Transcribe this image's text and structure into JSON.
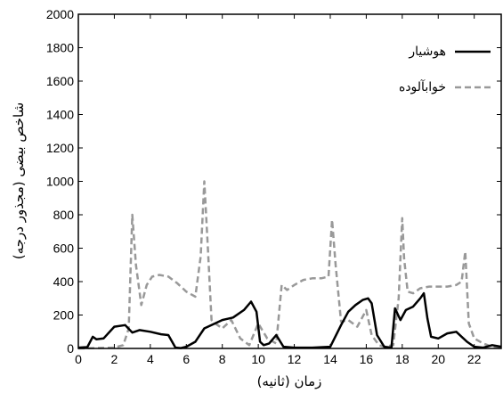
{
  "chart_data": {
    "type": "line",
    "xlabel": "زمان (ثانیه)",
    "ylabel": "شاخص بیضی (مجذور درجه)",
    "xlim": [
      0,
      23.5
    ],
    "ylim": [
      0,
      2000
    ],
    "xticks": [
      0,
      2,
      4,
      6,
      8,
      10,
      12,
      14,
      16,
      18,
      20,
      22
    ],
    "yticks": [
      0,
      200,
      400,
      600,
      800,
      1000,
      1200,
      1400,
      1600,
      1800,
      2000
    ],
    "grid": false,
    "legend_position": "top-right",
    "series": [
      {
        "name": "هوشیار",
        "color": "#000000",
        "style": "solid",
        "x": [
          0,
          0.5,
          0.8,
          1.0,
          1.4,
          2.0,
          2.6,
          3.0,
          3.4,
          4.0,
          4.6,
          5.0,
          5.4,
          5.7,
          6.0,
          6.5,
          7.0,
          7.4,
          8.0,
          8.6,
          9.2,
          9.6,
          9.9,
          10.1,
          10.3,
          10.6,
          11.0,
          11.4,
          12.0,
          13.0,
          14.0,
          14.6,
          15.0,
          15.4,
          15.8,
          16.1,
          16.3,
          16.6,
          17.0,
          17.4,
          17.6,
          17.9,
          18.2,
          18.6,
          19.0,
          19.2,
          19.4,
          19.6,
          20.0,
          20.5,
          21.0,
          21.6,
          22.0,
          22.5,
          23.0,
          23.5
        ],
        "y": [
          5,
          8,
          70,
          55,
          60,
          130,
          140,
          95,
          110,
          100,
          85,
          80,
          5,
          2,
          10,
          40,
          120,
          140,
          170,
          185,
          230,
          280,
          220,
          40,
          20,
          30,
          80,
          10,
          5,
          5,
          10,
          140,
          220,
          260,
          290,
          300,
          270,
          80,
          10,
          5,
          240,
          170,
          230,
          250,
          300,
          330,
          180,
          70,
          60,
          90,
          100,
          40,
          10,
          5,
          20,
          10
        ]
      },
      {
        "name": "خوابآلوده",
        "color": "#999999",
        "style": "dashed",
        "x": [
          0,
          2.0,
          2.5,
          2.8,
          3.0,
          3.2,
          3.5,
          3.8,
          4.1,
          4.5,
          5.0,
          5.5,
          6.0,
          6.5,
          6.8,
          7.0,
          7.2,
          7.4,
          7.6,
          8.0,
          8.5,
          9.0,
          9.5,
          10.0,
          10.5,
          11.0,
          11.3,
          11.6,
          12.0,
          12.5,
          13.0,
          13.5,
          13.9,
          14.1,
          14.3,
          14.6,
          15.0,
          15.5,
          16.0,
          16.3,
          16.7,
          17.0,
          17.5,
          17.8,
          18.0,
          18.1,
          18.3,
          18.6,
          19.0,
          19.5,
          20.0,
          20.5,
          21.0,
          21.3,
          21.5,
          21.7,
          22.0,
          22.5,
          23.0,
          23.5
        ],
        "y": [
          0,
          5,
          20,
          120,
          800,
          500,
          260,
          380,
          430,
          440,
          430,
          390,
          340,
          310,
          550,
          1000,
          600,
          170,
          150,
          120,
          170,
          60,
          20,
          150,
          60,
          30,
          380,
          350,
          380,
          410,
          420,
          420,
          430,
          770,
          500,
          160,
          170,
          130,
          230,
          80,
          20,
          10,
          20,
          300,
          780,
          540,
          340,
          330,
          360,
          370,
          370,
          370,
          380,
          400,
          580,
          150,
          60,
          30,
          10,
          0
        ]
      }
    ]
  }
}
